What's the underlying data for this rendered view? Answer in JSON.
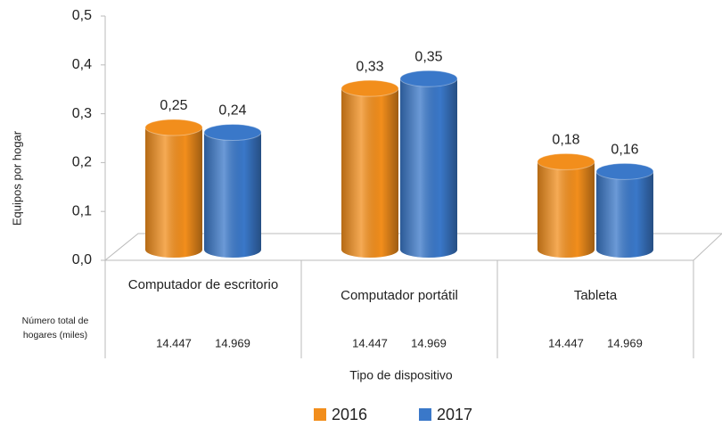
{
  "chart_data": {
    "type": "bar3d",
    "categories": [
      "Computador de escritorio",
      "Computador portátil",
      "Tableta"
    ],
    "series": [
      {
        "name": "2016",
        "color": "#f28e1c",
        "values": [
          0.25,
          0.33,
          0.18
        ],
        "value_labels": [
          "0,25",
          "0,33",
          "0,18"
        ]
      },
      {
        "name": "2017",
        "color": "#3a78c9",
        "values": [
          0.24,
          0.35,
          0.16
        ],
        "value_labels": [
          "0,24",
          "0,35",
          "0,16"
        ]
      }
    ],
    "ylim": [
      0,
      0.5
    ],
    "yticks": [
      {
        "value": 0,
        "label": "0,0"
      },
      {
        "value": 0.1,
        "label": "0,1"
      },
      {
        "value": 0.2,
        "label": "0,2"
      },
      {
        "value": 0.3,
        "label": "0,3"
      },
      {
        "value": 0.4,
        "label": "0,4"
      },
      {
        "value": 0.5,
        "label": "0,5"
      }
    ],
    "y_label": "Equipos por hogar",
    "x_label": "Tipo de dispositivo",
    "grid": false,
    "legend": "bottom",
    "table": {
      "label": "Número total de hogares (miles)",
      "rows": [
        [
          "14.447",
          "14.969"
        ],
        [
          "14.447",
          "14.969"
        ],
        [
          "14.447",
          "14.969"
        ]
      ]
    }
  }
}
